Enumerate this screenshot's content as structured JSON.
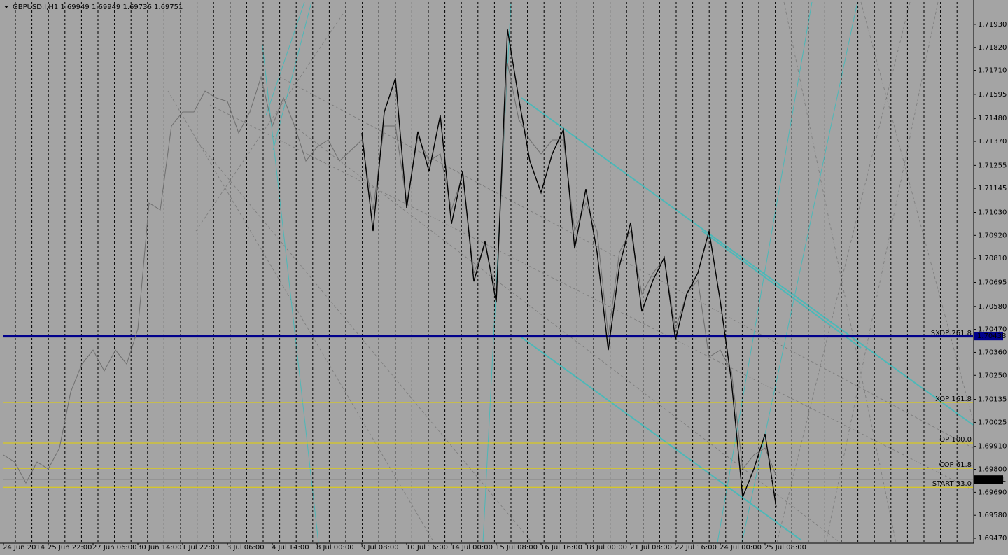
{
  "header": {
    "symbol": "GBPUSD.I,H1",
    "ohlc": [
      1.69949,
      1.69949,
      1.69736,
      1.69751
    ]
  },
  "chart_data": {
    "type": "line",
    "categories": [
      "24 Jun 2014",
      null,
      null,
      null,
      "25 Jun 22:00",
      null,
      null,
      null,
      "27 Jun 06:00",
      null,
      null,
      null,
      "30 Jun 14:00",
      null,
      null,
      null,
      "1 Jul 22:00",
      null,
      null,
      null,
      "3 Jul 06:00",
      null,
      null,
      null,
      "4 Jul 14:00",
      null,
      null,
      null,
      "8 Jul 00:00",
      null,
      null,
      null,
      "9 Jul 08:00",
      null,
      null,
      null,
      "10 Jul 16:00",
      null,
      null,
      null,
      "14 Jul 00:00",
      null,
      null,
      null,
      "15 Jul 08:00",
      null,
      null,
      null,
      "16 Jul 16:00",
      null,
      null,
      null,
      "18 Jul 00:00",
      null,
      null,
      null,
      "21 Jul 08:00",
      null,
      null,
      null,
      "22 Jul 16:00",
      null,
      null,
      null,
      "24 Jul 00:00",
      null,
      null,
      null,
      "25 Jul 08:00",
      null
    ],
    "series": [
      {
        "color": "#6e6e6e",
        "values": [
          1.69869,
          1.69835,
          1.69735,
          1.69835,
          1.69802,
          1.69902,
          1.7017,
          1.70304,
          1.70371,
          1.70271,
          1.70371,
          1.70304,
          1.70472,
          1.71075,
          1.71042,
          1.71444,
          1.71511,
          1.71511,
          1.71611,
          1.71578,
          1.71561,
          1.7141,
          1.71511,
          1.71678,
          1.71444,
          1.71578,
          1.71444,
          1.71276,
          1.71343,
          1.71377,
          1.71276,
          1.71326,
          1.71377,
          1.71042,
          1.71444,
          1.71444,
          1.71075,
          1.71393,
          1.71276,
          1.7131,
          1.71042,
          1.71209,
          1.7074,
          1.70874,
          1.70639,
          1.71745,
          1.71477,
          1.71377,
          1.7131,
          1.71377,
          1.71377,
          1.70941,
          1.71075,
          1.70941,
          1.70438,
          1.7084,
          1.70941,
          1.70639,
          1.7074,
          1.70807,
          1.70472,
          1.70639,
          1.70706,
          1.70338,
          1.70371,
          1.70271,
          1.69802,
          1.69869,
          1.69902,
          1.69768
        ]
      },
      {
        "color": "#000000",
        "values": [
          null,
          null,
          null,
          null,
          null,
          null,
          null,
          null,
          null,
          null,
          null,
          null,
          null,
          null,
          null,
          null,
          null,
          null,
          null,
          null,
          null,
          null,
          null,
          null,
          null,
          null,
          null,
          null,
          null,
          null,
          null,
          null,
          1.7141,
          1.70941,
          1.71511,
          1.71672,
          1.71052,
          1.71417,
          1.71226,
          1.71494,
          1.70975,
          1.71226,
          1.707,
          1.70891,
          1.70599,
          1.71906,
          1.71578,
          1.71276,
          1.71125,
          1.7131,
          1.71427,
          1.70857,
          1.71142,
          1.7084,
          1.70371,
          1.70773,
          1.70981,
          1.70556,
          1.70706,
          1.70814,
          1.70421,
          1.70639,
          1.7074,
          1.70941,
          1.70606,
          1.70221,
          1.69667,
          1.69802,
          1.69969,
          1.69617
        ]
      }
    ],
    "ylim": [
      1.6945,
      1.72037
    ],
    "yticks": [
      {
        "value": 1.7193,
        "label": "1.71930"
      },
      {
        "value": 1.7182,
        "label": "1.71820"
      },
      {
        "value": 1.7171,
        "label": "1.71710"
      },
      1.71595,
      {
        "value": 1.7148,
        "label": "1.71480"
      },
      {
        "value": 1.7137,
        "label": "1.71370"
      },
      1.71255,
      1.71145,
      {
        "value": 1.7103,
        "label": "1.71030"
      },
      {
        "value": 1.7092,
        "label": "1.70920"
      },
      {
        "value": 1.7081,
        "label": "1.70810"
      },
      1.70695,
      {
        "value": 1.7058,
        "label": "1.70580"
      },
      {
        "value": 1.7047,
        "label": "1.70470"
      },
      {
        "value": 1.7036,
        "label": "1.70360"
      },
      {
        "value": 1.7025,
        "label": "1.70250"
      },
      1.70135,
      1.70025,
      {
        "value": 1.6991,
        "label": "1.69910"
      },
      {
        "value": 1.698,
        "label": "1.69800"
      },
      {
        "value": 1.6969,
        "label": "1.69690"
      },
      {
        "value": 1.6958,
        "label": "1.69580"
      },
      {
        "value": 1.6947,
        "label": "1.69470"
      }
    ],
    "grid": false,
    "hline": {
      "value": 1.70438,
      "color": "#00008b"
    },
    "current_price": 1.69751,
    "levels": [
      {
        "label": "SXOP 261.8",
        "value": 1.70435
      },
      {
        "label": "XOP 161.8",
        "value": 1.7012
      },
      {
        "label": "OP 100.0",
        "value": 1.69926
      },
      {
        "label": "COP 61.8",
        "value": 1.69805
      },
      {
        "label": "START 33.0",
        "value": 1.69714
      }
    ],
    "level_color": "#e6d200"
  }
}
